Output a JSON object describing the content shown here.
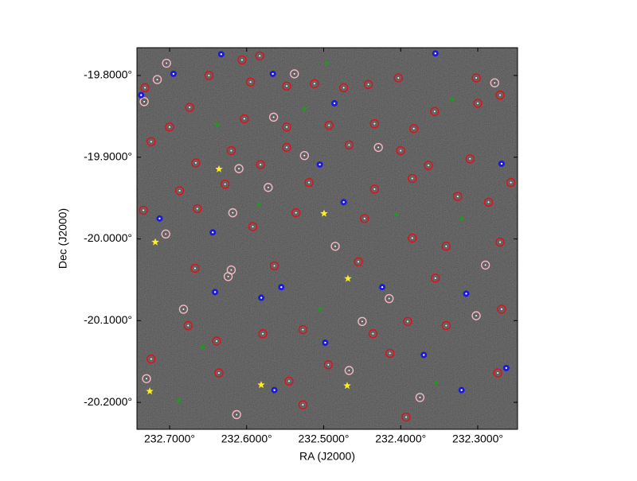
{
  "chart_data": {
    "type": "scatter",
    "xlabel": "RA (J2000)",
    "ylabel": "Dec (J2000)",
    "xlim": [
      232.7424,
      232.2483
    ],
    "ylim": [
      -20.233,
      -19.766
    ],
    "xticks": [
      {
        "value": 232.7,
        "label": "232.7000°"
      },
      {
        "value": 232.6,
        "label": "232.6000°"
      },
      {
        "value": 232.5,
        "label": "232.5000°"
      },
      {
        "value": 232.4,
        "label": "232.4000°"
      },
      {
        "value": 232.3,
        "label": "232.3000°"
      }
    ],
    "yticks": [
      {
        "value": -19.8,
        "label": "-19.8000°"
      },
      {
        "value": -19.9,
        "label": "-19.9000°"
      },
      {
        "value": -20.0,
        "label": "-20.0000°"
      },
      {
        "value": -20.1,
        "label": "-20.1000°"
      },
      {
        "value": -20.2,
        "label": "-20.2000°"
      }
    ],
    "series": [
      {
        "marker": "ring",
        "color": "#e0101a",
        "x": [
          232.732,
          232.674,
          232.649,
          232.606,
          232.583,
          232.595,
          232.548,
          232.512,
          232.474,
          232.442,
          232.403,
          232.302,
          232.271,
          232.3,
          232.356,
          232.383,
          232.434,
          232.493,
          232.548,
          232.603,
          232.7,
          232.724,
          232.666,
          232.62,
          232.582,
          232.548,
          232.467,
          232.4,
          232.364,
          232.31,
          232.257,
          232.286,
          232.326,
          232.385,
          232.434,
          232.519,
          232.628,
          232.687,
          232.734,
          232.664,
          232.592,
          232.536,
          232.447,
          232.385,
          232.341,
          232.271,
          232.269,
          232.341,
          232.391,
          232.436,
          232.527,
          232.579,
          232.639,
          232.676,
          232.724,
          232.636,
          232.545,
          232.494,
          232.393,
          232.274,
          232.355,
          232.455,
          232.564,
          232.667,
          232.527,
          232.414
        ],
        "y": [
          -19.815,
          -19.839,
          -19.8,
          -19.781,
          -19.776,
          -19.808,
          -19.813,
          -19.81,
          -19.815,
          -19.811,
          -19.803,
          -19.803,
          -19.824,
          -19.834,
          -19.844,
          -19.865,
          -19.859,
          -19.861,
          -19.863,
          -19.853,
          -19.863,
          -19.881,
          -19.907,
          -19.892,
          -19.909,
          -19.888,
          -19.885,
          -19.892,
          -19.91,
          -19.902,
          -19.931,
          -19.955,
          -19.948,
          -19.926,
          -19.939,
          -19.931,
          -19.933,
          -19.941,
          -19.965,
          -19.963,
          -19.985,
          -19.968,
          -19.975,
          -19.999,
          -20.009,
          -20.004,
          -20.086,
          -20.106,
          -20.101,
          -20.116,
          -20.111,
          -20.116,
          -20.125,
          -20.106,
          -20.147,
          -20.164,
          -20.174,
          -20.154,
          -20.218,
          -20.164,
          -20.048,
          -20.028,
          -20.033,
          -20.036,
          -20.203,
          -20.14
        ]
      },
      {
        "marker": "ring",
        "color": "#f4b8c2",
        "x": [
          232.704,
          232.733,
          232.565,
          232.525,
          232.572,
          232.618,
          232.705,
          232.62,
          232.624,
          232.485,
          232.682,
          232.45,
          232.415,
          232.613,
          232.29,
          232.429,
          232.716,
          232.278,
          232.538,
          232.375,
          232.302,
          232.467,
          232.73,
          232.61
        ],
        "y": [
          -19.785,
          -19.832,
          -19.851,
          -19.898,
          -19.937,
          -19.968,
          -19.994,
          -20.038,
          -20.046,
          -20.009,
          -20.086,
          -20.101,
          -20.073,
          -20.215,
          -20.032,
          -19.888,
          -19.805,
          -19.809,
          -19.798,
          -20.194,
          -20.094,
          -20.161,
          -20.171,
          -19.914
        ]
      },
      {
        "marker": "dot",
        "color": "#1a1ad8",
        "x": [
          232.633,
          232.566,
          232.695,
          232.486,
          232.505,
          232.474,
          232.269,
          232.644,
          232.713,
          232.641,
          232.581,
          232.555,
          232.424,
          232.37,
          232.315,
          232.263,
          232.321,
          232.498,
          232.564,
          232.355,
          232.737
        ],
        "y": [
          -19.774,
          -19.798,
          -19.798,
          -19.834,
          -19.909,
          -19.955,
          -19.908,
          -19.992,
          -19.975,
          -20.065,
          -20.072,
          -20.059,
          -20.059,
          -20.142,
          -20.067,
          -20.158,
          -20.185,
          -20.127,
          -20.185,
          -19.773,
          -19.824
        ]
      },
      {
        "marker": "cross",
        "color": "#1f9a1f",
        "x": [
          232.525,
          232.638,
          232.406,
          232.321,
          232.584,
          232.505,
          232.657,
          232.688,
          232.354,
          232.496,
          232.333
        ],
        "y": [
          -19.841,
          -19.86,
          -19.97,
          -19.975,
          -19.958,
          -20.086,
          -20.132,
          -20.198,
          -20.176,
          -19.785,
          -19.829
        ]
      },
      {
        "marker": "star",
        "color": "#ffee22",
        "x": [
          232.6359,
          232.4995,
          232.7186,
          232.4685,
          232.7258,
          232.5811,
          232.4695
        ],
        "y": [
          -19.9146,
          -19.9689,
          -20.0039,
          -20.0485,
          -20.1864,
          -20.1786,
          -20.1796
        ]
      }
    ]
  }
}
